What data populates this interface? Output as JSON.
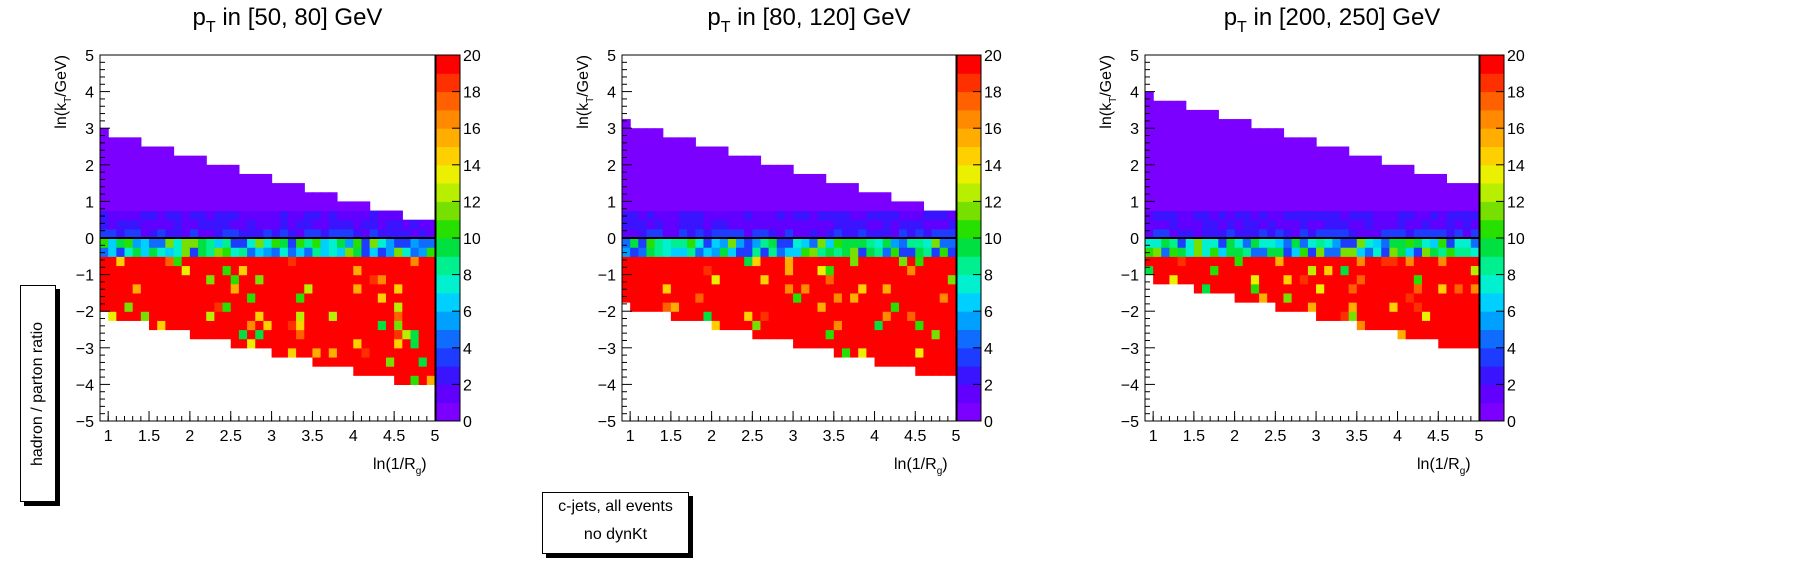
{
  "side_label": "hadron / parton ratio",
  "note": {
    "line1": "c-jets, all events",
    "line2": "no dynKt"
  },
  "palette": [
    "#7b00ff",
    "#6100ff",
    "#3a13ff",
    "#1e3cff",
    "#0f6cff",
    "#00a0ff",
    "#00d0ff",
    "#00f0d0",
    "#00f090",
    "#00e040",
    "#28e000",
    "#78e000",
    "#b8ee00",
    "#eaf000",
    "#ffd000",
    "#ffae00",
    "#ff8a00",
    "#ff6000",
    "#ff3000",
    "#ff0000"
  ],
  "chart_data": [
    {
      "type": "heatmap",
      "title_prefix": "p",
      "title_sub": "T",
      "title_suffix": " in [50, 80] GeV",
      "xlabel": "ln(1/R",
      "xlabel_sub": "g",
      "xlabel_end": ")",
      "ylabel": "ln(k",
      "ylabel_sub": "T",
      "ylabel_end": "/GeV)",
      "xlim": [
        0.9,
        5.0
      ],
      "ylim": [
        -5,
        5
      ],
      "zlim": [
        0,
        20
      ],
      "xticks": [
        "1",
        "1.5",
        "2",
        "2.5",
        "3",
        "3.5",
        "4",
        "4.5",
        "5"
      ],
      "yticks": [
        "5",
        "4",
        "3",
        "2",
        "1",
        "0",
        "−1",
        "−2",
        "−3",
        "−4",
        "−5"
      ],
      "zticks": [
        "20",
        "18",
        "16",
        "14",
        "12",
        "10",
        "8",
        "6",
        "4",
        "2",
        "0"
      ],
      "bin_width_x": 0.1,
      "bin_width_y": 0.25,
      "y_top_at_x09": 3.0,
      "slope": -1.0,
      "band_width": 5.0,
      "boundary_y": 0.0
    },
    {
      "type": "heatmap",
      "title_prefix": "p",
      "title_sub": "T",
      "title_suffix": " in [80, 120] GeV",
      "xlabel": "ln(1/R",
      "xlabel_sub": "g",
      "xlabel_end": ")",
      "ylabel": "ln(k",
      "ylabel_sub": "T",
      "ylabel_end": "/GeV)",
      "xlim": [
        0.9,
        5.0
      ],
      "ylim": [
        -5,
        5
      ],
      "zlim": [
        0,
        20
      ],
      "xticks": [
        "1",
        "1.5",
        "2",
        "2.5",
        "3",
        "3.5",
        "4",
        "4.5",
        "5"
      ],
      "yticks": [
        "5",
        "4",
        "3",
        "2",
        "1",
        "0",
        "−1",
        "−2",
        "−3",
        "−4",
        "−5"
      ],
      "zticks": [
        "20",
        "18",
        "16",
        "14",
        "12",
        "10",
        "8",
        "6",
        "4",
        "2",
        "0"
      ],
      "bin_width_x": 0.1,
      "bin_width_y": 0.25,
      "y_top_at_x09": 3.25,
      "slope": -1.0,
      "band_width": 5.0,
      "boundary_y": 0.0
    },
    {
      "type": "heatmap",
      "title_prefix": "p",
      "title_sub": "T",
      "title_suffix": " in [200, 250] GeV",
      "xlabel": "ln(1/R",
      "xlabel_sub": "g",
      "xlabel_end": ")",
      "ylabel": "ln(k",
      "ylabel_sub": "T",
      "ylabel_end": "/GeV)",
      "xlim": [
        0.9,
        5.0
      ],
      "ylim": [
        -5,
        5
      ],
      "zlim": [
        0,
        20
      ],
      "xticks": [
        "1",
        "1.5",
        "2",
        "2.5",
        "3",
        "3.5",
        "4",
        "4.5",
        "5"
      ],
      "yticks": [
        "5",
        "4",
        "3",
        "2",
        "1",
        "0",
        "−1",
        "−2",
        "−3",
        "−4",
        "−5"
      ],
      "zticks": [
        "20",
        "18",
        "16",
        "14",
        "12",
        "10",
        "8",
        "6",
        "4",
        "2",
        "0"
      ],
      "bin_width_x": 0.1,
      "bin_width_y": 0.25,
      "y_top_at_x09": 4.0,
      "slope": -1.0,
      "band_width": 5.0,
      "boundary_y": 0.0
    }
  ]
}
